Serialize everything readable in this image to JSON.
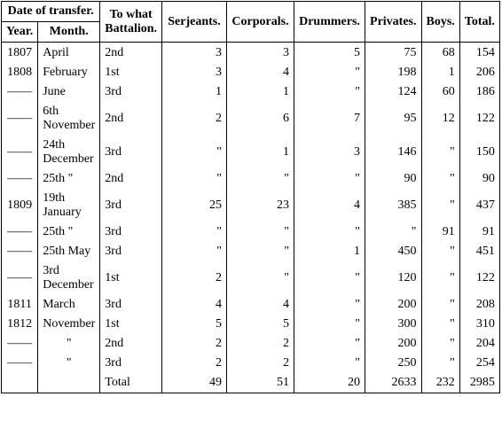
{
  "table": {
    "header": {
      "group": "Date of transfer.",
      "columns": [
        "Year.",
        "Month.",
        "To what Battalion.",
        "Serjeants.",
        "Corporals.",
        "Drummers.",
        "Privates.",
        "Boys.",
        "Total."
      ]
    },
    "rows": [
      [
        "1807",
        "April",
        "2nd",
        "3",
        "3",
        "5",
        "75",
        "68",
        "154"
      ],
      [
        "1808",
        "February",
        "1st",
        "3",
        "4",
        "\"",
        "198",
        "1",
        "206"
      ],
      [
        "——",
        "June",
        "3rd",
        "1",
        "1",
        "\"",
        "124",
        "60",
        "186"
      ],
      [
        "——",
        "6th November",
        "2nd",
        "2",
        "6",
        "7",
        "95",
        "12",
        "122"
      ],
      [
        "——",
        "24th December",
        "3rd",
        "\"",
        "1",
        "3",
        "146",
        "\"",
        "150"
      ],
      [
        "——",
        "25th  \"",
        "2nd",
        "\"",
        "\"",
        "\"",
        "90",
        "\"",
        "90"
      ],
      [
        "1809",
        "19th January",
        "3rd",
        "25",
        "23",
        "4",
        "385",
        "\"",
        "437"
      ],
      [
        "——",
        "25th  \"",
        "3rd",
        "\"",
        "\"",
        "\"",
        "\"",
        "91",
        "91"
      ],
      [
        "——",
        "25th May",
        "3rd",
        "\"",
        "\"",
        "1",
        "450",
        "\"",
        "451"
      ],
      [
        "——",
        "3rd December",
        "1st",
        "2",
        "\"",
        "\"",
        "120",
        "\"",
        "122"
      ],
      [
        "1811",
        "March",
        "3rd",
        "4",
        "4",
        "\"",
        "200",
        "\"",
        "208"
      ],
      [
        "1812",
        "November",
        "1st",
        "5",
        "5",
        "\"",
        "300",
        "\"",
        "310"
      ],
      [
        "——",
        "\"",
        "2nd",
        "2",
        "2",
        "\"",
        "200",
        "\"",
        "204"
      ],
      [
        "——",
        "\"",
        "3rd",
        "2",
        "2",
        "\"",
        "250",
        "\"",
        "254"
      ],
      [
        null,
        null,
        "Total",
        "49",
        "51",
        "20",
        "2633",
        "232",
        "2985"
      ]
    ]
  }
}
